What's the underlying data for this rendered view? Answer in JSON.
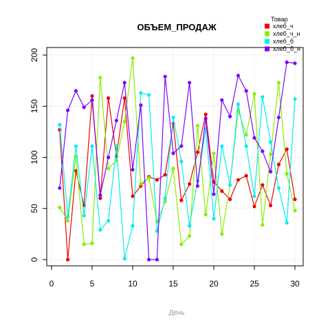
{
  "chart_data": {
    "type": "line",
    "title": "ОБЪЕМ_ПРОДАЖ",
    "xlabel": "День",
    "ylabel": "",
    "xlim": [
      0,
      30
    ],
    "ylim": [
      0,
      200
    ],
    "x_ticks": [
      0,
      5,
      10,
      15,
      20,
      25,
      30
    ],
    "y_ticks": [
      0,
      50,
      100,
      150,
      200
    ],
    "grid": true,
    "legend": {
      "title": "Товар",
      "placement": "top-right"
    },
    "x": [
      1,
      2,
      3,
      4,
      5,
      6,
      7,
      8,
      9,
      10,
      11,
      12,
      13,
      14,
      15,
      16,
      17,
      18,
      19,
      20,
      21,
      22,
      23,
      24,
      25,
      26,
      27,
      28,
      29,
      30
    ],
    "series": [
      {
        "name": "хлеб_ч",
        "color": "#ee0000",
        "values": [
          127,
          0,
          87,
          53,
          160,
          60,
          158,
          101,
          158,
          62,
          72,
          81,
          78,
          83,
          133,
          58,
          74,
          105,
          142,
          76,
          67,
          59,
          78,
          82,
          52,
          73,
          53,
          93,
          108,
          59
        ]
      },
      {
        "name": "хлеб_ч_н",
        "color": "#88ee00",
        "values": [
          51,
          38,
          101,
          15,
          16,
          178,
          89,
          97,
          135,
          197,
          74,
          80,
          37,
          57,
          89,
          15,
          23,
          131,
          44,
          104,
          25,
          73,
          146,
          122,
          162,
          34,
          103,
          173,
          84,
          48
        ]
      },
      {
        "name": "хлеб_б",
        "color": "#00eeee",
        "values": [
          132,
          42,
          111,
          43,
          111,
          29,
          38,
          111,
          1,
          33,
          163,
          161,
          28,
          60,
          139,
          96,
          33,
          77,
          128,
          40,
          111,
          73,
          152,
          111,
          62,
          159,
          115,
          70,
          36,
          157
        ]
      },
      {
        "name": "хлеб_б_н",
        "color": "#7f00ff",
        "values": [
          70,
          146,
          165,
          149,
          156,
          63,
          100,
          136,
          173,
          88,
          151,
          0,
          0,
          179,
          104,
          111,
          173,
          72,
          138,
          64,
          156,
          140,
          180,
          165,
          119,
          106,
          86,
          139,
          193,
          192
        ]
      }
    ]
  }
}
